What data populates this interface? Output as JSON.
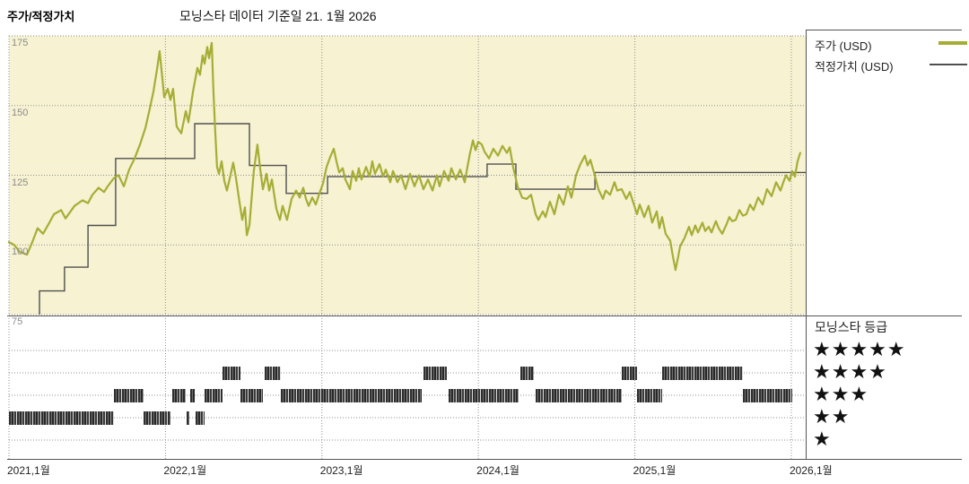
{
  "header": {
    "title": "주가/적정가치",
    "subtitle": "모닝스타 데이터 기준일 21. 1월 2026"
  },
  "legend": {
    "price_label": "주가 (USD)",
    "fair_value_label": "적정가치 (USD)"
  },
  "rating_legend": {
    "title": "모닝스타 등급",
    "levels": [
      5,
      4,
      3,
      2,
      1
    ]
  },
  "colors": {
    "plot_bg": "#f6f2d2",
    "price": "#a6ad35",
    "fair_value": "#4f4f4f",
    "grid": "#8f8f8f",
    "border": "#555555",
    "bars": "#2f2f2f",
    "y_tick_text": "#8c8c8c",
    "x_tick_text": "#222222",
    "star": "#111111"
  },
  "chart_data": {
    "type": "line",
    "title": "주가/적정가치",
    "subtitle": "모닝스타 데이터 기준일 21. 1월 2026",
    "x_range": [
      2021.0,
      2026.092
    ],
    "ylim": [
      75,
      175
    ],
    "y_ticks": [
      175,
      150,
      125,
      100,
      75
    ],
    "x_ticks": [
      {
        "t": 2021,
        "label": "2021,1월"
      },
      {
        "t": 2022,
        "label": "2022,1월"
      },
      {
        "t": 2023,
        "label": "2023,1월"
      },
      {
        "t": 2024,
        "label": "2024,1월"
      },
      {
        "t": 2025,
        "label": "2025,1월"
      },
      {
        "t": 2026,
        "label": "2026,1월"
      }
    ],
    "grid": true,
    "legend_position": "top-right",
    "series": [
      {
        "name": "주가 (USD)",
        "kind": "price",
        "points": [
          [
            2021.0,
            101
          ],
          [
            2021.034,
            100
          ],
          [
            2021.069,
            97.5
          ],
          [
            2021.115,
            96.5
          ],
          [
            2021.149,
            101
          ],
          [
            2021.183,
            106
          ],
          [
            2021.218,
            104
          ],
          [
            2021.258,
            108
          ],
          [
            2021.287,
            111
          ],
          [
            2021.333,
            112.5
          ],
          [
            2021.361,
            109.5
          ],
          [
            2021.419,
            114
          ],
          [
            2021.47,
            116
          ],
          [
            2021.505,
            115
          ],
          [
            2021.533,
            118
          ],
          [
            2021.573,
            120.5
          ],
          [
            2021.608,
            119
          ],
          [
            2021.631,
            121
          ],
          [
            2021.671,
            124
          ],
          [
            2021.7,
            125
          ],
          [
            2021.734,
            121
          ],
          [
            2021.768,
            127
          ],
          [
            2021.803,
            131
          ],
          [
            2021.837,
            136
          ],
          [
            2021.872,
            142
          ],
          [
            2021.9,
            149
          ],
          [
            2021.923,
            155
          ],
          [
            2021.946,
            163
          ],
          [
            2021.963,
            169.5
          ],
          [
            2021.98,
            160
          ],
          [
            2021.992,
            153
          ],
          [
            2022.015,
            156
          ],
          [
            2022.032,
            152
          ],
          [
            2022.049,
            156
          ],
          [
            2022.072,
            142.5
          ],
          [
            2022.101,
            140
          ],
          [
            2022.13,
            148
          ],
          [
            2022.147,
            144
          ],
          [
            2022.176,
            155
          ],
          [
            2022.204,
            163.5
          ],
          [
            2022.221,
            161
          ],
          [
            2022.238,
            168
          ],
          [
            2022.25,
            165
          ],
          [
            2022.267,
            171
          ],
          [
            2022.279,
            167
          ],
          [
            2022.296,
            172.5
          ],
          [
            2022.307,
            155
          ],
          [
            2022.319,
            140
          ],
          [
            2022.33,
            128
          ],
          [
            2022.342,
            125.5
          ],
          [
            2022.359,
            130
          ],
          [
            2022.376,
            123
          ],
          [
            2022.393,
            119.5
          ],
          [
            2022.416,
            125
          ],
          [
            2022.433,
            129.5
          ],
          [
            2022.451,
            124
          ],
          [
            2022.474,
            115
          ],
          [
            2022.491,
            109
          ],
          [
            2022.508,
            113.5
          ],
          [
            2022.52,
            103.5
          ],
          [
            2022.537,
            107
          ],
          [
            2022.548,
            115
          ],
          [
            2022.565,
            126.5
          ],
          [
            2022.588,
            136
          ],
          [
            2022.606,
            127
          ],
          [
            2022.623,
            120
          ],
          [
            2022.646,
            125.5
          ],
          [
            2022.663,
            119.5
          ],
          [
            2022.68,
            123.5
          ],
          [
            2022.709,
            113
          ],
          [
            2022.732,
            109
          ],
          [
            2022.749,
            114
          ],
          [
            2022.777,
            109
          ],
          [
            2022.806,
            116.5
          ],
          [
            2022.835,
            119.5
          ],
          [
            2022.858,
            117
          ],
          [
            2022.881,
            120.5
          ],
          [
            2022.898,
            116.5
          ],
          [
            2022.915,
            114
          ],
          [
            2022.938,
            117
          ],
          [
            2022.961,
            114.5
          ],
          [
            2022.984,
            118.5
          ],
          [
            2023.007,
            122
          ],
          [
            2023.03,
            128
          ],
          [
            2023.053,
            131.5
          ],
          [
            2023.076,
            134.5
          ],
          [
            2023.093,
            130
          ],
          [
            2023.11,
            126
          ],
          [
            2023.133,
            127.5
          ],
          [
            2023.15,
            123.5
          ],
          [
            2023.179,
            120
          ],
          [
            2023.196,
            126.5
          ],
          [
            2023.219,
            123
          ],
          [
            2023.236,
            127.5
          ],
          [
            2023.253,
            123.5
          ],
          [
            2023.282,
            128
          ],
          [
            2023.305,
            124.5
          ],
          [
            2023.322,
            130
          ],
          [
            2023.339,
            125.5
          ],
          [
            2023.368,
            129
          ],
          [
            2023.391,
            124.5
          ],
          [
            2023.408,
            127
          ],
          [
            2023.437,
            122.5
          ],
          [
            2023.454,
            126.5
          ],
          [
            2023.483,
            122.5
          ],
          [
            2023.506,
            125
          ],
          [
            2023.534,
            120
          ],
          [
            2023.563,
            125.5
          ],
          [
            2023.592,
            121
          ],
          [
            2023.62,
            125
          ],
          [
            2023.649,
            120
          ],
          [
            2023.678,
            123.5
          ],
          [
            2023.707,
            119.5
          ],
          [
            2023.735,
            125
          ],
          [
            2023.752,
            121
          ],
          [
            2023.781,
            126.5
          ],
          [
            2023.81,
            123
          ],
          [
            2023.827,
            127.5
          ],
          [
            2023.856,
            123.5
          ],
          [
            2023.884,
            127
          ],
          [
            2023.913,
            122.5
          ],
          [
            2023.93,
            128
          ],
          [
            2023.947,
            133
          ],
          [
            2023.965,
            137.5
          ],
          [
            2023.982,
            134
          ],
          [
            2023.999,
            137
          ],
          [
            2024.022,
            136
          ],
          [
            2024.039,
            133.5
          ],
          [
            2024.068,
            131
          ],
          [
            2024.096,
            134.5
          ],
          [
            2024.125,
            132
          ],
          [
            2024.154,
            135.5
          ],
          [
            2024.182,
            133
          ],
          [
            2024.2,
            135
          ],
          [
            2024.222,
            128
          ],
          [
            2024.251,
            121
          ],
          [
            2024.28,
            117
          ],
          [
            2024.308,
            116.5
          ],
          [
            2024.337,
            118
          ],
          [
            2024.366,
            111
          ],
          [
            2024.383,
            109
          ],
          [
            2024.412,
            112
          ],
          [
            2024.429,
            110
          ],
          [
            2024.457,
            115.5
          ],
          [
            2024.486,
            111
          ],
          [
            2024.515,
            118
          ],
          [
            2024.544,
            114.5
          ],
          [
            2024.572,
            121
          ],
          [
            2024.595,
            117
          ],
          [
            2024.624,
            125
          ],
          [
            2024.652,
            129
          ],
          [
            2024.681,
            132
          ],
          [
            2024.698,
            128.5
          ],
          [
            2024.716,
            130.5
          ],
          [
            2024.744,
            125
          ],
          [
            2024.767,
            120
          ],
          [
            2024.796,
            116.5
          ],
          [
            2024.813,
            119.5
          ],
          [
            2024.842,
            118
          ],
          [
            2024.87,
            122.5
          ],
          [
            2024.888,
            119.5
          ],
          [
            2024.916,
            120
          ],
          [
            2024.945,
            116.5
          ],
          [
            2024.968,
            119
          ],
          [
            2024.997,
            114
          ],
          [
            2025.014,
            111
          ],
          [
            2025.031,
            114.5
          ],
          [
            2025.06,
            110
          ],
          [
            2025.088,
            114
          ],
          [
            2025.111,
            108
          ],
          [
            2025.14,
            112
          ],
          [
            2025.157,
            106
          ],
          [
            2025.174,
            110
          ],
          [
            2025.197,
            104
          ],
          [
            2025.226,
            101.5
          ],
          [
            2025.243,
            96
          ],
          [
            2025.26,
            91
          ],
          [
            2025.278,
            96
          ],
          [
            2025.289,
            99.5
          ],
          [
            2025.318,
            102.5
          ],
          [
            2025.346,
            106.5
          ],
          [
            2025.364,
            103.5
          ],
          [
            2025.386,
            107
          ],
          [
            2025.404,
            104.5
          ],
          [
            2025.432,
            108
          ],
          [
            2025.45,
            105
          ],
          [
            2025.472,
            106.5
          ],
          [
            2025.49,
            104.5
          ],
          [
            2025.518,
            108.5
          ],
          [
            2025.536,
            106
          ],
          [
            2025.559,
            104
          ],
          [
            2025.587,
            107.5
          ],
          [
            2025.604,
            110
          ],
          [
            2025.622,
            108.5
          ],
          [
            2025.645,
            109
          ],
          [
            2025.668,
            112.5
          ],
          [
            2025.69,
            110.5
          ],
          [
            2025.713,
            111
          ],
          [
            2025.736,
            114.5
          ],
          [
            2025.759,
            112.5
          ],
          [
            2025.788,
            117
          ],
          [
            2025.817,
            114.5
          ],
          [
            2025.845,
            120
          ],
          [
            2025.874,
            117.5
          ],
          [
            2025.903,
            122.5
          ],
          [
            2025.931,
            119.5
          ],
          [
            2025.949,
            122.5
          ],
          [
            2025.966,
            125
          ],
          [
            2025.989,
            123
          ],
          [
            2026.006,
            126.5
          ],
          [
            2026.023,
            124.5
          ],
          [
            2026.04,
            130
          ],
          [
            2026.057,
            133
          ]
        ]
      },
      {
        "name": "적정가치 (USD)",
        "kind": "step",
        "steps": [
          [
            2021.195,
            2021.355,
            83.5
          ],
          [
            2021.355,
            2021.505,
            92
          ],
          [
            2021.505,
            2021.682,
            107
          ],
          [
            2021.682,
            2022.187,
            131
          ],
          [
            2022.187,
            2022.537,
            143.5
          ],
          [
            2022.537,
            2022.772,
            128.5
          ],
          [
            2022.772,
            2023.036,
            118.5
          ],
          [
            2023.036,
            2024.056,
            124.5
          ],
          [
            2024.056,
            2024.24,
            129
          ],
          [
            2024.24,
            2024.745,
            120
          ],
          [
            2024.745,
            2026.092,
            126
          ]
        ]
      }
    ],
    "ratings": {
      "title": "모닝스타 등급",
      "rows": [
        5,
        4,
        3,
        2,
        1
      ],
      "segments": [
        {
          "stars": 2,
          "t0": 2021.0,
          "t1": 2021.671
        },
        {
          "stars": 3,
          "t0": 2021.671,
          "t1": 2021.86
        },
        {
          "stars": 2,
          "t0": 2021.86,
          "t1": 2022.032
        },
        {
          "stars": 3,
          "t0": 2022.044,
          "t1": 2022.13
        },
        {
          "stars": 2,
          "t0": 2022.135,
          "t1": 2022.153
        },
        {
          "stars": 3,
          "t0": 2022.158,
          "t1": 2022.187
        },
        {
          "stars": 2,
          "t0": 2022.193,
          "t1": 2022.25
        },
        {
          "stars": 3,
          "t0": 2022.25,
          "t1": 2022.365
        },
        {
          "stars": 4,
          "t0": 2022.365,
          "t1": 2022.479
        },
        {
          "stars": 3,
          "t0": 2022.479,
          "t1": 2022.623
        },
        {
          "stars": 4,
          "t0": 2022.634,
          "t1": 2022.737
        },
        {
          "stars": 3,
          "t0": 2022.737,
          "t1": 2023.638
        },
        {
          "stars": 4,
          "t0": 2023.649,
          "t1": 2023.798
        },
        {
          "stars": 3,
          "t0": 2023.81,
          "t1": 2024.257
        },
        {
          "stars": 4,
          "t0": 2024.268,
          "t1": 2024.354
        },
        {
          "stars": 3,
          "t0": 2024.366,
          "t1": 2024.916
        },
        {
          "stars": 4,
          "t0": 2024.916,
          "t1": 2025.014
        },
        {
          "stars": 3,
          "t0": 2025.014,
          "t1": 2025.174
        },
        {
          "stars": 4,
          "t0": 2025.174,
          "t1": 2025.69
        },
        {
          "stars": 3,
          "t0": 2025.69,
          "t1": 2026.006
        }
      ]
    }
  }
}
